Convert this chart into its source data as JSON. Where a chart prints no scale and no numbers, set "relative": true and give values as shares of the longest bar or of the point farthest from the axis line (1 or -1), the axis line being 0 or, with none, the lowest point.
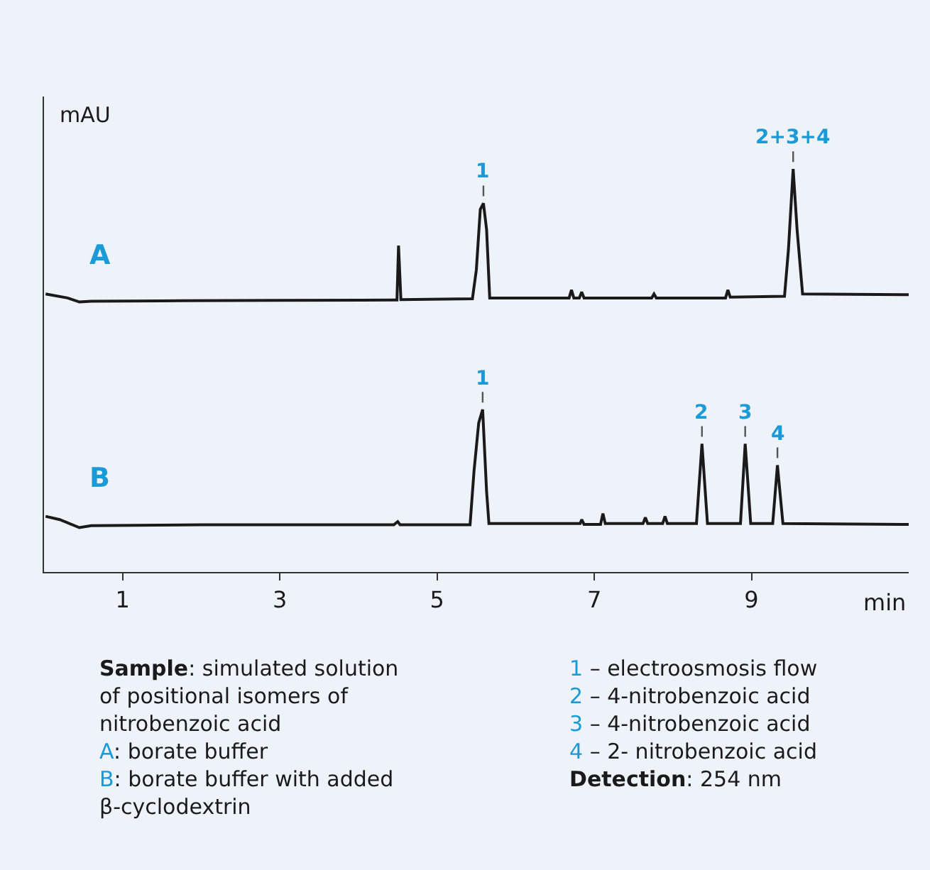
{
  "chart_data": {
    "type": "line",
    "relative": true,
    "ylabel": "mAU",
    "xlabel": "min",
    "xlim": [
      0,
      11
    ],
    "xticks": [
      1,
      3,
      5,
      7,
      9
    ],
    "grid": false,
    "legend": false,
    "marker": "none",
    "line_style": "solid",
    "series": [
      {
        "name": "A",
        "color": "#1a1a1a",
        "x": [
          0.02,
          0.3,
          0.45,
          0.6,
          1.5,
          3,
          4.45,
          4.49,
          4.51,
          4.54,
          5.45,
          5.5,
          5.55,
          5.59,
          5.63,
          5.67,
          6.68,
          6.71,
          6.74,
          6.81,
          6.84,
          6.87,
          7.73,
          7.76,
          7.79,
          8.67,
          8.7,
          8.73,
          9.42,
          9.47,
          9.53,
          9.58,
          9.65,
          11.0
        ],
        "values": [
          0.69,
          0.68,
          0.67,
          0.672,
          0.673,
          0.674,
          0.675,
          0.675,
          0.81,
          0.676,
          0.678,
          0.75,
          0.9,
          0.915,
          0.85,
          0.68,
          0.68,
          0.7,
          0.68,
          0.68,
          0.695,
          0.68,
          0.68,
          0.69,
          0.68,
          0.68,
          0.7,
          0.682,
          0.684,
          0.8,
          1.0,
          0.85,
          0.69,
          0.688
        ]
      },
      {
        "name": "B",
        "color": "#1a1a1a",
        "x": [
          0.02,
          0.2,
          0.45,
          0.6,
          2,
          4.45,
          4.5,
          4.53,
          5.42,
          5.47,
          5.53,
          5.58,
          5.63,
          5.66,
          6.82,
          6.84,
          6.87,
          7.08,
          7.11,
          7.14,
          7.62,
          7.65,
          7.68,
          7.87,
          7.9,
          7.93,
          8.3,
          8.37,
          8.44,
          8.86,
          8.92,
          8.99,
          9.27,
          9.33,
          9.4,
          11.0
        ],
        "values": [
          0.138,
          0.13,
          0.11,
          0.115,
          0.117,
          0.117,
          0.125,
          0.117,
          0.117,
          0.25,
          0.37,
          0.403,
          0.2,
          0.12,
          0.12,
          0.13,
          0.118,
          0.118,
          0.145,
          0.12,
          0.12,
          0.135,
          0.12,
          0.12,
          0.138,
          0.12,
          0.12,
          0.318,
          0.12,
          0.12,
          0.318,
          0.12,
          0.12,
          0.265,
          0.12,
          0.118
        ]
      }
    ],
    "annotations": [
      {
        "text": "1",
        "x": 5.59,
        "y": 0.915
      },
      {
        "text": "2+3+4",
        "x": 9.53,
        "y": 1.0
      },
      {
        "text": "1",
        "x": 5.58,
        "y": 0.403
      },
      {
        "text": "2",
        "x": 8.37,
        "y": 0.318
      },
      {
        "text": "3",
        "x": 8.92,
        "y": 0.318
      },
      {
        "text": "4",
        "x": 9.33,
        "y": 0.265
      },
      "Sample: simulated solution of positional isomers of nitrobenzoic acid",
      "A: borate buffer",
      "B: borate buffer with added β-cyclodextrin",
      "1 – electroosmosis flow",
      "2 – 4-nitrobenzoic acid",
      "3 – 4-nitrobenzoic acid",
      "4 – 2- nitrobenzoic acid",
      "Detection: 254 nm"
    ]
  }
}
